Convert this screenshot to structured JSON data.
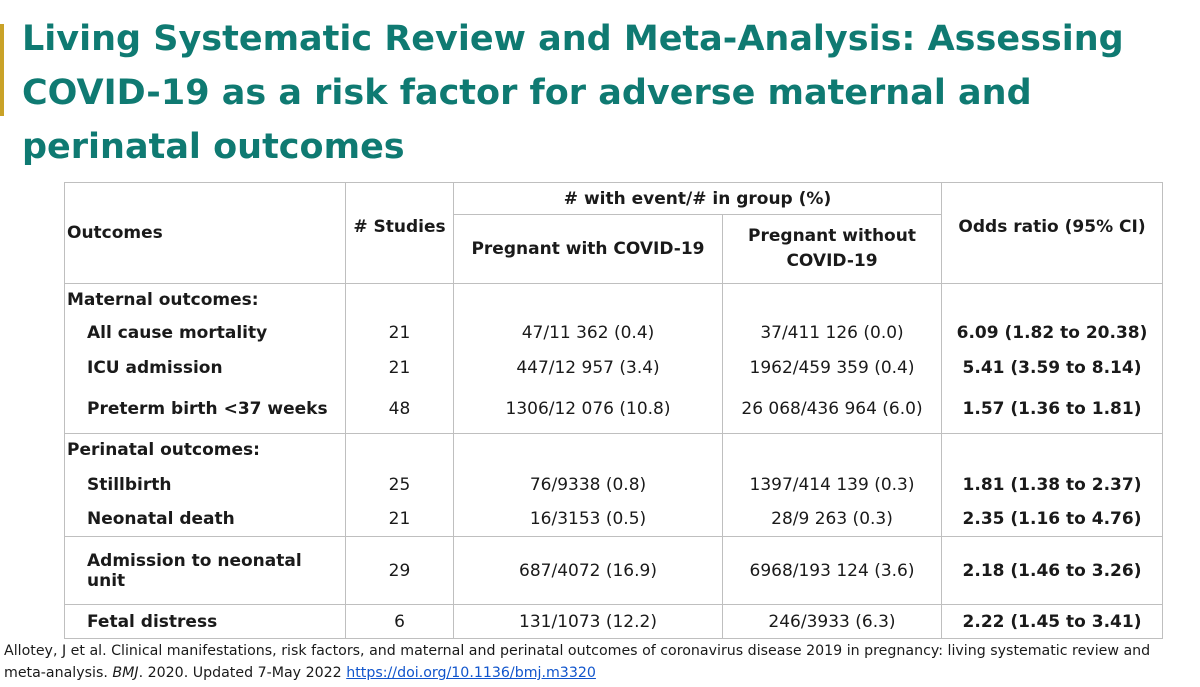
{
  "title": "Living Systematic Review and Meta-Analysis: Assessing COVID-19 as a risk factor for adverse maternal and perinatal outcomes",
  "table": {
    "headers": {
      "outcomes": "Outcomes",
      "studies": "# Studies",
      "group_header": "# with event/# in group (%)",
      "with_covid": "Pregnant with COVID-19",
      "without_covid": "Pregnant without COVID-19",
      "odds_ratio": "Odds ratio (95% CI)"
    },
    "sections": [
      {
        "label": "Maternal outcomes:",
        "rows": [
          {
            "outcome": "All cause mortality",
            "studies": "21",
            "with": "47/11 362 (0.4)",
            "without": "37/411 126 (0.0)",
            "or": "6.09 (1.82 to 20.38)"
          },
          {
            "outcome": "ICU admission",
            "studies": "21",
            "with": "447/12 957 (3.4)",
            "without": "1962/459 359 (0.4)",
            "or": "5.41 (3.59 to 8.14)"
          },
          {
            "outcome": "Preterm birth <37 weeks",
            "studies": "48",
            "with": "1306/12 076 (10.8)",
            "without": "26 068/436 964 (6.0)",
            "or": "1.57 (1.36 to 1.81)"
          }
        ]
      },
      {
        "label": "Perinatal outcomes:",
        "rows": [
          {
            "outcome": "Stillbirth",
            "studies": "25",
            "with": "76/9338 (0.8)",
            "without": "1397/414 139 (0.3)",
            "or": "1.81 (1.38 to 2.37)"
          },
          {
            "outcome": "Neonatal death",
            "studies": "21",
            "with": "16/3153 (0.5)",
            "without": "28/9 263 (0.3)",
            "or": "2.35 (1.16 to 4.76)"
          },
          {
            "outcome": "Admission to neonatal unit",
            "studies": "29",
            "with": "687/4072 (16.9)",
            "without": "6968/193 124 (3.6)",
            "or": "2.18 (1.46 to 3.26)"
          },
          {
            "outcome": "Fetal distress",
            "studies": "6",
            "with": "131/1073 (12.2)",
            "without": "246/3933 (6.3)",
            "or": "2.22 (1.45 to 3.41)"
          }
        ]
      }
    ]
  },
  "citation": {
    "text_before": "Allotey, J  et al. Clinical manifestations, risk factors, and maternal and perinatal outcomes of coronavirus disease 2019 in pregnancy: living systematic review and meta-analysis. ",
    "journal": "BMJ",
    "text_after": ". 2020.  Updated 7-May 2022 ",
    "link_text": "https://doi.org/10.1136/bmj.m3320"
  },
  "colors": {
    "title": "#0f7a72",
    "link": "#1155cc",
    "grid": "#bfbfbf"
  }
}
